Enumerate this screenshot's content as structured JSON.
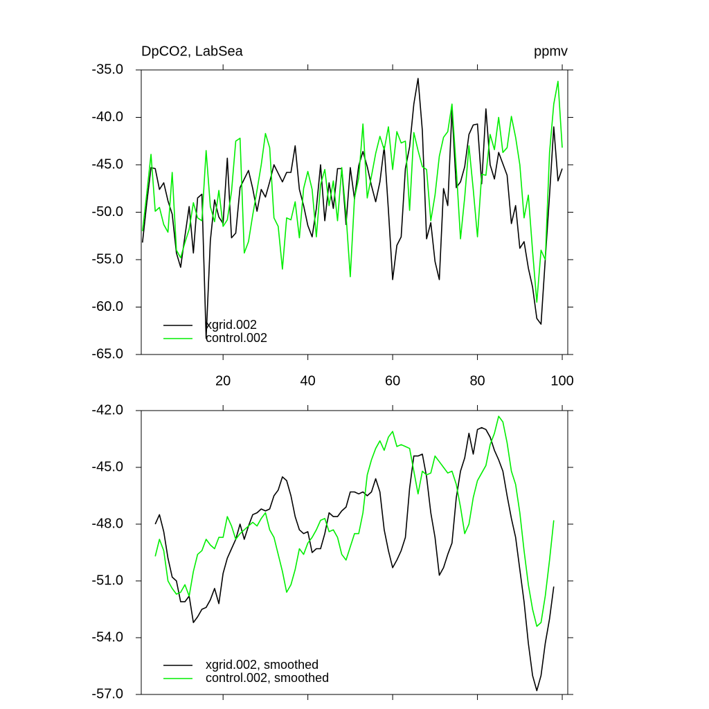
{
  "chart_data": [
    {
      "type": "line",
      "title": "DpCO2, LabSea",
      "right_title": "ppmv",
      "x": [
        1,
        2,
        3,
        4,
        5,
        6,
        7,
        8,
        9,
        10,
        11,
        12,
        13,
        14,
        15,
        16,
        17,
        18,
        19,
        20,
        21,
        22,
        23,
        24,
        25,
        26,
        27,
        28,
        29,
        30,
        31,
        32,
        33,
        34,
        35,
        36,
        37,
        38,
        39,
        40,
        41,
        42,
        43,
        44,
        45,
        46,
        47,
        48,
        49,
        50,
        51,
        52,
        53,
        54,
        55,
        56,
        57,
        58,
        59,
        60,
        61,
        62,
        63,
        64,
        65,
        66,
        67,
        68,
        69,
        70,
        71,
        72,
        73,
        74,
        75,
        76,
        77,
        78,
        79,
        80,
        81,
        82,
        83,
        84,
        85,
        86,
        87,
        88,
        89,
        90,
        91,
        92,
        93,
        94,
        95,
        96,
        97,
        98,
        99,
        100
      ],
      "series": [
        {
          "name": "xgrid.002",
          "color": "#000000",
          "values": [
            -53.2,
            -49.0,
            -45.3,
            -45.4,
            -47.6,
            -46.9,
            -48.8,
            -50.2,
            -54.3,
            -55.8,
            -52.5,
            -49.4,
            -54.3,
            -48.5,
            -48.1,
            -63.3,
            -53.0,
            -48.7,
            -50.5,
            -51.2,
            -44.3,
            -52.7,
            -52.2,
            -47.4,
            -46.5,
            -45.6,
            -47.5,
            -49.9,
            -47.6,
            -48.4,
            -46.8,
            -45.0,
            -45.9,
            -46.8,
            -45.8,
            -45.8,
            -43.0,
            -47.6,
            -49.3,
            -51.4,
            -52.6,
            -49.6,
            -45.0,
            -50.9,
            -46.9,
            -49.6,
            -45.4,
            -45.4,
            -51.3,
            -45.3,
            -48.6,
            -45.1,
            -43.6,
            -45.2,
            -47.2,
            -48.9,
            -46.8,
            -43.1,
            -49.8,
            -57.1,
            -53.5,
            -52.6,
            -45.4,
            -43.1,
            -38.6,
            -35.9,
            -41.4,
            -52.8,
            -51.1,
            -55.2,
            -57.1,
            -47.5,
            -49.3,
            -39.2,
            -47.4,
            -46.8,
            -45.2,
            -41.8,
            -40.8,
            -40.7,
            -47.0,
            -39.1,
            -45.0,
            -46.5,
            -43.7,
            -44.9,
            -46.1,
            -51.2,
            -49.3,
            -53.8,
            -53.1,
            -55.9,
            -57.9,
            -61.2,
            -61.8,
            -55.0,
            -48.2,
            -41.0,
            -46.7,
            -45.4
          ]
        },
        {
          "name": "control.002",
          "color": "#00ee00",
          "values": [
            -52.0,
            -48.0,
            -43.9,
            -49.9,
            -49.5,
            -51.3,
            -52.1,
            -45.8,
            -54.0,
            -54.8,
            -53.2,
            -51.8,
            -49.0,
            -50.6,
            -50.9,
            -43.5,
            -49.4,
            -51.0,
            -47.7,
            -51.5,
            -50.8,
            -47.8,
            -42.5,
            -42.2,
            -54.3,
            -53.1,
            -50.3,
            -47.7,
            -45.0,
            -41.7,
            -43.2,
            -50.6,
            -51.5,
            -56.0,
            -50.6,
            -50.8,
            -48.9,
            -52.7,
            -47.5,
            -45.7,
            -47.6,
            -52.6,
            -47.1,
            -45.5,
            -49.3,
            -46.7,
            -50.9,
            -45.3,
            -50.3,
            -56.8,
            -48.5,
            -46.4,
            -40.7,
            -48.5,
            -46.2,
            -43.8,
            -42.0,
            -43.4,
            -41.0,
            -45.5,
            -41.5,
            -42.7,
            -42.5,
            -49.8,
            -41.6,
            -43.5,
            -45.2,
            -45.5,
            -50.9,
            -48.2,
            -44.1,
            -42.1,
            -41.5,
            -38.6,
            -45.4,
            -52.8,
            -48.4,
            -43.0,
            -47.6,
            -52.6,
            -46.0,
            -46.1,
            -41.8,
            -43.4,
            -40.0,
            -43.7,
            -43.2,
            -39.9,
            -42.1,
            -45.0,
            -50.6,
            -48.2,
            -54.1,
            -59.5,
            -54.0,
            -55.0,
            -43.7,
            -38.6,
            -36.2,
            -43.2
          ]
        }
      ],
      "xlim": [
        0.7,
        101.3
      ],
      "xticks": [
        20,
        40,
        60,
        80,
        100
      ],
      "ylim": [
        -65,
        -35
      ],
      "yticks": [
        {
          "value": -35,
          "label": "-35.0"
        },
        {
          "value": -40,
          "label": "-40.0"
        },
        {
          "value": -45,
          "label": "-45.0"
        },
        {
          "value": -50,
          "label": "-50.0"
        },
        {
          "value": -55,
          "label": "-55.0"
        },
        {
          "value": -60,
          "label": "-60.0"
        },
        {
          "value": -65,
          "label": "-65.0"
        }
      ],
      "legend": "lower left"
    },
    {
      "type": "line",
      "x": [
        1,
        2,
        3,
        4,
        5,
        6,
        7,
        8,
        9,
        10,
        11,
        12,
        13,
        14,
        15,
        16,
        17,
        18,
        19,
        20,
        21,
        22,
        23,
        24,
        25,
        26,
        27,
        28,
        29,
        30,
        31,
        32,
        33,
        34,
        35,
        36,
        37,
        38,
        39,
        40,
        41,
        42,
        43,
        44,
        45,
        46,
        47,
        48,
        49,
        50,
        51,
        52,
        53,
        54,
        55,
        56,
        57,
        58,
        59,
        60,
        61,
        62,
        63,
        64,
        65,
        66,
        67,
        68,
        69,
        70,
        71,
        72,
        73,
        74,
        75,
        76,
        77,
        78,
        79,
        80,
        81,
        82,
        83,
        84,
        85,
        86,
        87,
        88,
        89,
        90,
        91,
        92,
        93,
        94,
        95,
        96,
        97,
        98,
        99,
        100
      ],
      "series": [
        {
          "name": "xgrid.002, smoothed",
          "color": "#000000",
          "values": [
            null,
            null,
            null,
            -48.0,
            -47.5,
            -48.4,
            -49.8,
            -50.8,
            -51.0,
            -52.1,
            -52.1,
            -51.8,
            -53.2,
            -52.9,
            -52.5,
            -52.4,
            -52.0,
            -51.4,
            -52.2,
            -50.6,
            -49.8,
            -49.3,
            -48.8,
            -48.0,
            -48.8,
            -48.1,
            -47.5,
            -47.4,
            -47.2,
            -47.3,
            -47.2,
            -46.5,
            -46.2,
            -45.5,
            -45.7,
            -46.5,
            -47.6,
            -48.3,
            -48.5,
            -48.4,
            -49.5,
            -49.3,
            -49.3,
            -48.5,
            -47.4,
            -47.6,
            -47.6,
            -47.3,
            -47.1,
            -46.3,
            -46.3,
            -46.4,
            -46.3,
            -46.5,
            -46.3,
            -45.6,
            -46.3,
            -48.3,
            -49.4,
            -50.3,
            -49.9,
            -49.4,
            -48.7,
            -46.1,
            -44.4,
            -44.4,
            -44.3,
            -45.5,
            -47.4,
            -48.7,
            -50.7,
            -50.3,
            -49.6,
            -49.0,
            -46.6,
            -45.2,
            -44.5,
            -43.2,
            -44.3,
            -43.0,
            -42.9,
            -43.0,
            -43.4,
            -44.1,
            -44.6,
            -45.2,
            -46.5,
            -47.7,
            -48.7,
            -50.4,
            -52.1,
            -54.3,
            -56.0,
            -56.8,
            -56.0,
            -54.3,
            -53.0,
            -51.3,
            null,
            null
          ]
        },
        {
          "name": "control.002, smoothed",
          "color": "#00ee00",
          "values": [
            null,
            null,
            null,
            -49.7,
            -48.8,
            -49.4,
            -51.0,
            -51.4,
            -51.7,
            -51.6,
            -51.2,
            -51.8,
            -50.5,
            -49.6,
            -49.4,
            -48.8,
            -49.1,
            -49.3,
            -48.7,
            -48.7,
            -47.6,
            -48.1,
            -48.8,
            -48.5,
            -48.3,
            -48.1,
            -47.9,
            -48.1,
            -47.7,
            -47.4,
            -48.3,
            -48.7,
            -49.6,
            -50.5,
            -51.6,
            -51.2,
            -50.4,
            -49.3,
            -49.6,
            -49.0,
            -48.7,
            -48.3,
            -47.8,
            -47.7,
            -48.4,
            -48.3,
            -48.7,
            -49.6,
            -49.9,
            -49.2,
            -48.5,
            -48.5,
            -47.4,
            -45.4,
            -44.6,
            -44.0,
            -43.6,
            -44.1,
            -43.4,
            -43.1,
            -43.9,
            -43.8,
            -43.9,
            -44.0,
            -45.2,
            -46.4,
            -45.2,
            -45.4,
            -45.3,
            -44.4,
            -44.7,
            -45.0,
            -45.3,
            -45.2,
            -45.9,
            -47.1,
            -48.5,
            -48.0,
            -46.6,
            -45.7,
            -45.3,
            -44.9,
            -43.8,
            -43.2,
            -42.3,
            -42.6,
            -43.7,
            -45.2,
            -45.9,
            -47.4,
            -49.4,
            -51.2,
            -52.5,
            -53.4,
            -53.2,
            -51.8,
            -49.9,
            -47.8,
            null,
            null
          ]
        }
      ],
      "xlim": [
        0.7,
        101.3
      ],
      "ylim": [
        -57,
        -42
      ],
      "yticks": [
        {
          "value": -42,
          "label": "-42.0"
        },
        {
          "value": -45,
          "label": "-45.0"
        },
        {
          "value": -48,
          "label": "-48.0"
        },
        {
          "value": -51,
          "label": "-51.0"
        },
        {
          "value": -54,
          "label": "-54.0"
        },
        {
          "value": -57,
          "label": "-57.0"
        }
      ],
      "legend": "lower left"
    }
  ]
}
